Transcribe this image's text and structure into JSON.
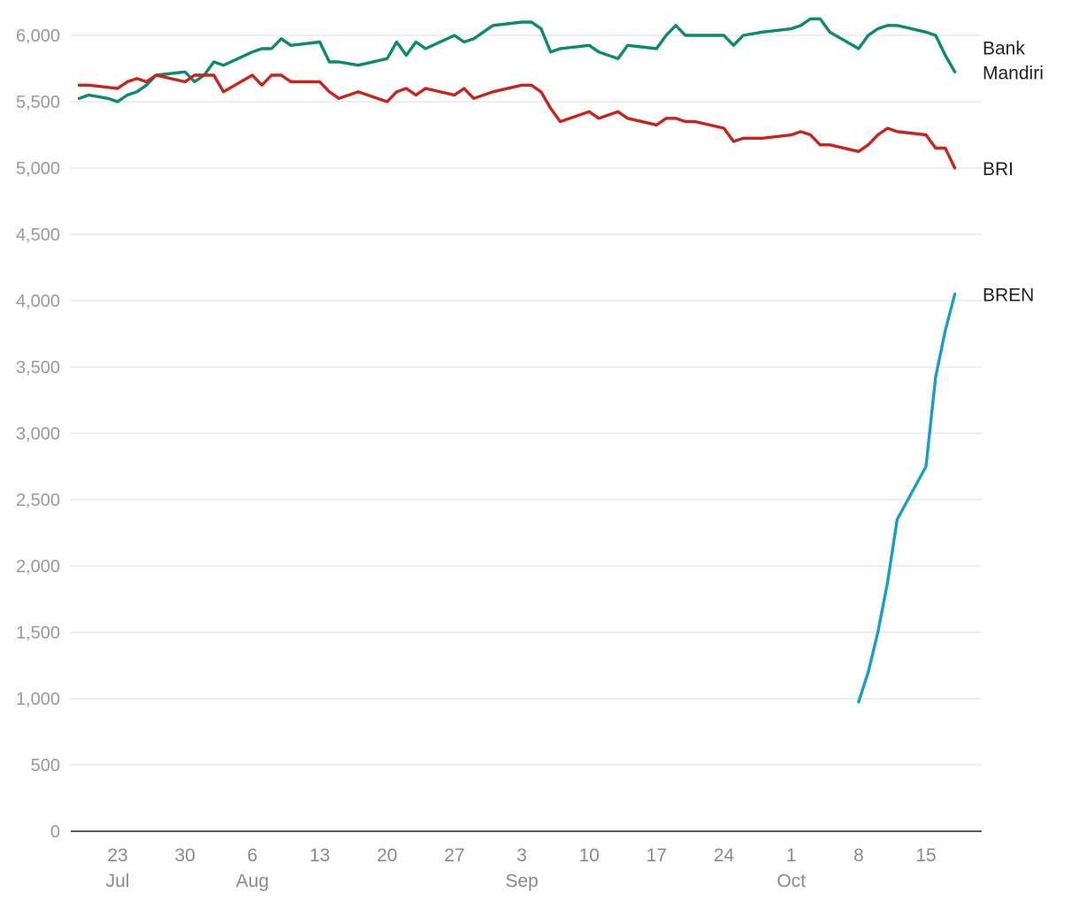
{
  "chart_data": {
    "type": "line",
    "title": "",
    "xlabel": "",
    "ylabel": "",
    "ylim": [
      0,
      6000
    ],
    "yticks": [
      0,
      500,
      1000,
      1500,
      2000,
      2500,
      3000,
      3500,
      4000,
      4500,
      5000,
      5500,
      6000
    ],
    "ytick_labels": [
      "0",
      "500",
      "1,000",
      "1,500",
      "2,000",
      "2,500",
      "3,000",
      "3,500",
      "4,000",
      "4,500",
      "5,000",
      "5,500",
      "6,000"
    ],
    "xlim": [
      "2024-07-19",
      "2024-10-18"
    ],
    "xticks": [
      {
        "date": "2024-07-23",
        "label": "23",
        "month": "Jul"
      },
      {
        "date": "2024-07-30",
        "label": "30",
        "month": ""
      },
      {
        "date": "2024-08-06",
        "label": "6",
        "month": "Aug"
      },
      {
        "date": "2024-08-13",
        "label": "13",
        "month": ""
      },
      {
        "date": "2024-08-20",
        "label": "20",
        "month": ""
      },
      {
        "date": "2024-08-27",
        "label": "27",
        "month": ""
      },
      {
        "date": "2024-09-03",
        "label": "3",
        "month": "Sep"
      },
      {
        "date": "2024-09-10",
        "label": "10",
        "month": ""
      },
      {
        "date": "2024-09-17",
        "label": "17",
        "month": ""
      },
      {
        "date": "2024-09-24",
        "label": "24",
        "month": ""
      },
      {
        "date": "2024-10-01",
        "label": "1",
        "month": "Oct"
      },
      {
        "date": "2024-10-08",
        "label": "8",
        "month": ""
      },
      {
        "date": "2024-10-15",
        "label": "15",
        "month": ""
      }
    ],
    "grid": true,
    "legend": "direct labels at line ends",
    "series": [
      {
        "name": "Bank Mandiri",
        "label_lines": [
          "Bank",
          "Mandiri"
        ],
        "color": "#0b8a6e",
        "points": [
          [
            "2024-07-19",
            5525
          ],
          [
            "2024-07-20",
            5550
          ],
          [
            "2024-07-22",
            5525
          ],
          [
            "2024-07-23",
            5500
          ],
          [
            "2024-07-24",
            5550
          ],
          [
            "2024-07-25",
            5575
          ],
          [
            "2024-07-26",
            5625
          ],
          [
            "2024-07-27",
            5700
          ],
          [
            "2024-07-30",
            5725
          ],
          [
            "2024-07-31",
            5650
          ],
          [
            "2024-08-01",
            5700
          ],
          [
            "2024-08-02",
            5800
          ],
          [
            "2024-08-03",
            5775
          ],
          [
            "2024-08-06",
            5875
          ],
          [
            "2024-08-07",
            5900
          ],
          [
            "2024-08-08",
            5900
          ],
          [
            "2024-08-09",
            5975
          ],
          [
            "2024-08-10",
            5925
          ],
          [
            "2024-08-13",
            5950
          ],
          [
            "2024-08-14",
            5800
          ],
          [
            "2024-08-15",
            5800
          ],
          [
            "2024-08-17",
            5775
          ],
          [
            "2024-08-20",
            5825
          ],
          [
            "2024-08-21",
            5950
          ],
          [
            "2024-08-22",
            5850
          ],
          [
            "2024-08-23",
            5950
          ],
          [
            "2024-08-24",
            5900
          ],
          [
            "2024-08-27",
            6000
          ],
          [
            "2024-08-28",
            5950
          ],
          [
            "2024-08-29",
            5975
          ],
          [
            "2024-08-31",
            6075
          ],
          [
            "2024-09-03",
            6100
          ],
          [
            "2024-09-04",
            6100
          ],
          [
            "2024-09-05",
            6050
          ],
          [
            "2024-09-06",
            5875
          ],
          [
            "2024-09-07",
            5900
          ],
          [
            "2024-09-10",
            5925
          ],
          [
            "2024-09-11",
            5875
          ],
          [
            "2024-09-13",
            5825
          ],
          [
            "2024-09-14",
            5925
          ],
          [
            "2024-09-17",
            5900
          ],
          [
            "2024-09-18",
            6000
          ],
          [
            "2024-09-19",
            6075
          ],
          [
            "2024-09-20",
            6000
          ],
          [
            "2024-09-24",
            6000
          ],
          [
            "2024-09-25",
            5925
          ],
          [
            "2024-09-26",
            6000
          ],
          [
            "2024-09-28",
            6025
          ],
          [
            "2024-10-01",
            6050
          ],
          [
            "2024-10-02",
            6075
          ],
          [
            "2024-10-03",
            6125
          ],
          [
            "2024-10-04",
            6125
          ],
          [
            "2024-10-05",
            6025
          ],
          [
            "2024-10-08",
            5900
          ],
          [
            "2024-10-09",
            6000
          ],
          [
            "2024-10-10",
            6050
          ],
          [
            "2024-10-11",
            6075
          ],
          [
            "2024-10-12",
            6075
          ],
          [
            "2024-10-15",
            6025
          ],
          [
            "2024-10-16",
            6000
          ],
          [
            "2024-10-17",
            5850
          ],
          [
            "2024-10-18",
            5725
          ]
        ]
      },
      {
        "name": "BRI",
        "label_lines": [
          "BRI"
        ],
        "color": "#c8231d",
        "points": [
          [
            "2024-07-19",
            5625
          ],
          [
            "2024-07-20",
            5625
          ],
          [
            "2024-07-23",
            5600
          ],
          [
            "2024-07-24",
            5650
          ],
          [
            "2024-07-25",
            5675
          ],
          [
            "2024-07-26",
            5650
          ],
          [
            "2024-07-27",
            5700
          ],
          [
            "2024-07-30",
            5650
          ],
          [
            "2024-07-31",
            5700
          ],
          [
            "2024-08-02",
            5700
          ],
          [
            "2024-08-03",
            5575
          ],
          [
            "2024-08-06",
            5700
          ],
          [
            "2024-08-07",
            5625
          ],
          [
            "2024-08-08",
            5700
          ],
          [
            "2024-08-09",
            5700
          ],
          [
            "2024-08-10",
            5650
          ],
          [
            "2024-08-13",
            5650
          ],
          [
            "2024-08-14",
            5575
          ],
          [
            "2024-08-15",
            5525
          ],
          [
            "2024-08-17",
            5575
          ],
          [
            "2024-08-20",
            5500
          ],
          [
            "2024-08-21",
            5575
          ],
          [
            "2024-08-22",
            5600
          ],
          [
            "2024-08-23",
            5550
          ],
          [
            "2024-08-24",
            5600
          ],
          [
            "2024-08-27",
            5550
          ],
          [
            "2024-08-28",
            5600
          ],
          [
            "2024-08-29",
            5525
          ],
          [
            "2024-08-31",
            5575
          ],
          [
            "2024-09-03",
            5625
          ],
          [
            "2024-09-04",
            5625
          ],
          [
            "2024-09-05",
            5575
          ],
          [
            "2024-09-06",
            5450
          ],
          [
            "2024-09-07",
            5350
          ],
          [
            "2024-09-10",
            5425
          ],
          [
            "2024-09-11",
            5375
          ],
          [
            "2024-09-13",
            5425
          ],
          [
            "2024-09-14",
            5375
          ],
          [
            "2024-09-17",
            5325
          ],
          [
            "2024-09-18",
            5375
          ],
          [
            "2024-09-19",
            5375
          ],
          [
            "2024-09-20",
            5350
          ],
          [
            "2024-09-21",
            5350
          ],
          [
            "2024-09-24",
            5300
          ],
          [
            "2024-09-25",
            5200
          ],
          [
            "2024-09-26",
            5225
          ],
          [
            "2024-09-28",
            5225
          ],
          [
            "2024-10-01",
            5250
          ],
          [
            "2024-10-02",
            5275
          ],
          [
            "2024-10-03",
            5250
          ],
          [
            "2024-10-04",
            5175
          ],
          [
            "2024-10-05",
            5175
          ],
          [
            "2024-10-08",
            5125
          ],
          [
            "2024-10-09",
            5175
          ],
          [
            "2024-10-10",
            5250
          ],
          [
            "2024-10-11",
            5300
          ],
          [
            "2024-10-12",
            5275
          ],
          [
            "2024-10-15",
            5250
          ],
          [
            "2024-10-16",
            5150
          ],
          [
            "2024-10-17",
            5150
          ],
          [
            "2024-10-18",
            5000
          ]
        ]
      },
      {
        "name": "BREN",
        "label_lines": [
          "BREN"
        ],
        "color": "#1e9cc8",
        "points": [
          [
            "2024-10-08",
            975
          ],
          [
            "2024-10-09",
            1200
          ],
          [
            "2024-10-10",
            1500
          ],
          [
            "2024-10-11",
            1875
          ],
          [
            "2024-10-12",
            2350
          ],
          [
            "2024-10-15",
            2750
          ],
          [
            "2024-10-16",
            3425
          ],
          [
            "2024-10-17",
            3775
          ],
          [
            "2024-10-18",
            4050
          ]
        ]
      }
    ]
  }
}
